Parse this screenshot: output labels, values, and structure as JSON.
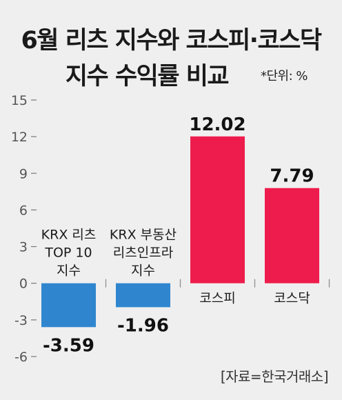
{
  "title_line1": "6월 리츠 지수와 코스피·코스닥",
  "title_line2": "지수 수익률 비교",
  "unit_note": "*단위: %",
  "source": "[자료=한국거래소]",
  "chart_data": {
    "type": "bar",
    "categories": [
      [
        "KRX 리츠",
        "TOP 10",
        "지수"
      ],
      [
        "KRX 부동산",
        "리츠인프라",
        "지수"
      ],
      [
        "코스피"
      ],
      [
        "코스닥"
      ]
    ],
    "values": [
      -3.59,
      -1.96,
      12.02,
      7.79
    ],
    "value_labels": [
      "-3.59",
      "-1.96",
      "12.02",
      "7.79"
    ],
    "colors": [
      "#2f86cf",
      "#2f86cf",
      "#ee1c4c",
      "#ee1c4c"
    ],
    "ylim": [
      -6,
      15
    ],
    "yticks": [
      "15",
      "12",
      "9",
      "6",
      "3",
      "0",
      "-3",
      "-6"
    ],
    "grid": false
  }
}
